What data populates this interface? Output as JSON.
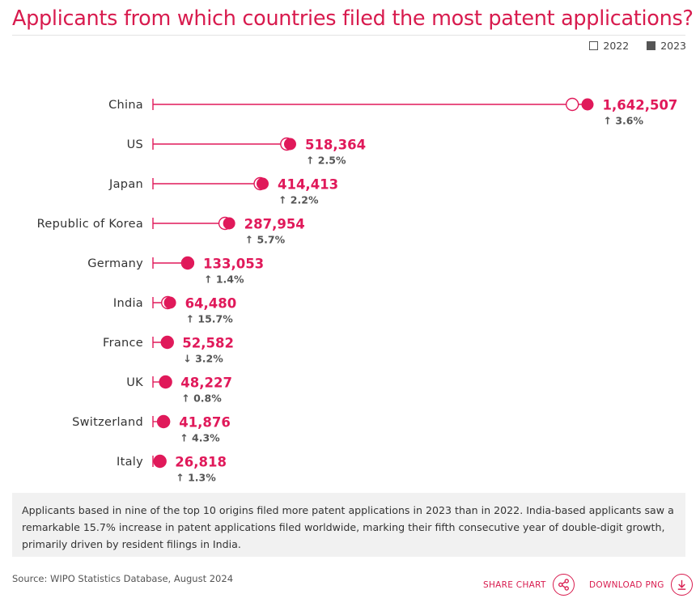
{
  "title": "Applicants from which countries filed the most patent applications?",
  "legend": {
    "y2022": "2022",
    "y2023": "2023"
  },
  "note": "Applicants based in nine of the top 10 origins filed more patent applications in 2023 than in 2022. India-based applicants saw a remarkable 15.7% increase in patent applications filed worldwide, marking their fifth consecutive year of double-digit growth, primarily driven by resident filings in India.",
  "source": "Source: WIPO Statistics Database, August 2024",
  "actions": {
    "share": "SHARE CHART",
    "download": "DOWNLOAD PNG"
  },
  "colors": {
    "accent": "#e0195a",
    "title": "#d81b4e",
    "text": "#333333"
  },
  "chart_data": {
    "type": "dot",
    "categories": [
      "China",
      "US",
      "Japan",
      "Republic of Korea",
      "Germany",
      "India",
      "France",
      "UK",
      "Switzerland",
      "Italy"
    ],
    "series": [
      {
        "name": "2022",
        "values": [
          1585000,
          505700,
          405400,
          272400,
          131200,
          55700,
          54300,
          47800,
          40100,
          26500
        ]
      },
      {
        "name": "2023",
        "values": [
          1642507,
          518364,
          414413,
          287954,
          133053,
          64480,
          52582,
          48227,
          41876,
          26818
        ]
      }
    ],
    "value_labels": [
      "1,642,507",
      "518,364",
      "414,413",
      "287,954",
      "133,053",
      "64,480",
      "52,582",
      "48,227",
      "41,876",
      "26,818"
    ],
    "change_labels": [
      "3.6%",
      "2.5%",
      "2.2%",
      "5.7%",
      "1.4%",
      "15.7%",
      "3.2%",
      "0.8%",
      "4.3%",
      "1.3%"
    ],
    "change_direction": [
      "up",
      "up",
      "up",
      "up",
      "up",
      "up",
      "down",
      "up",
      "up",
      "up"
    ],
    "arrows": {
      "up": "↑",
      "down": "↓"
    },
    "xlim": [
      0,
      1700000
    ],
    "grid": false,
    "legend_position": "top-right"
  }
}
